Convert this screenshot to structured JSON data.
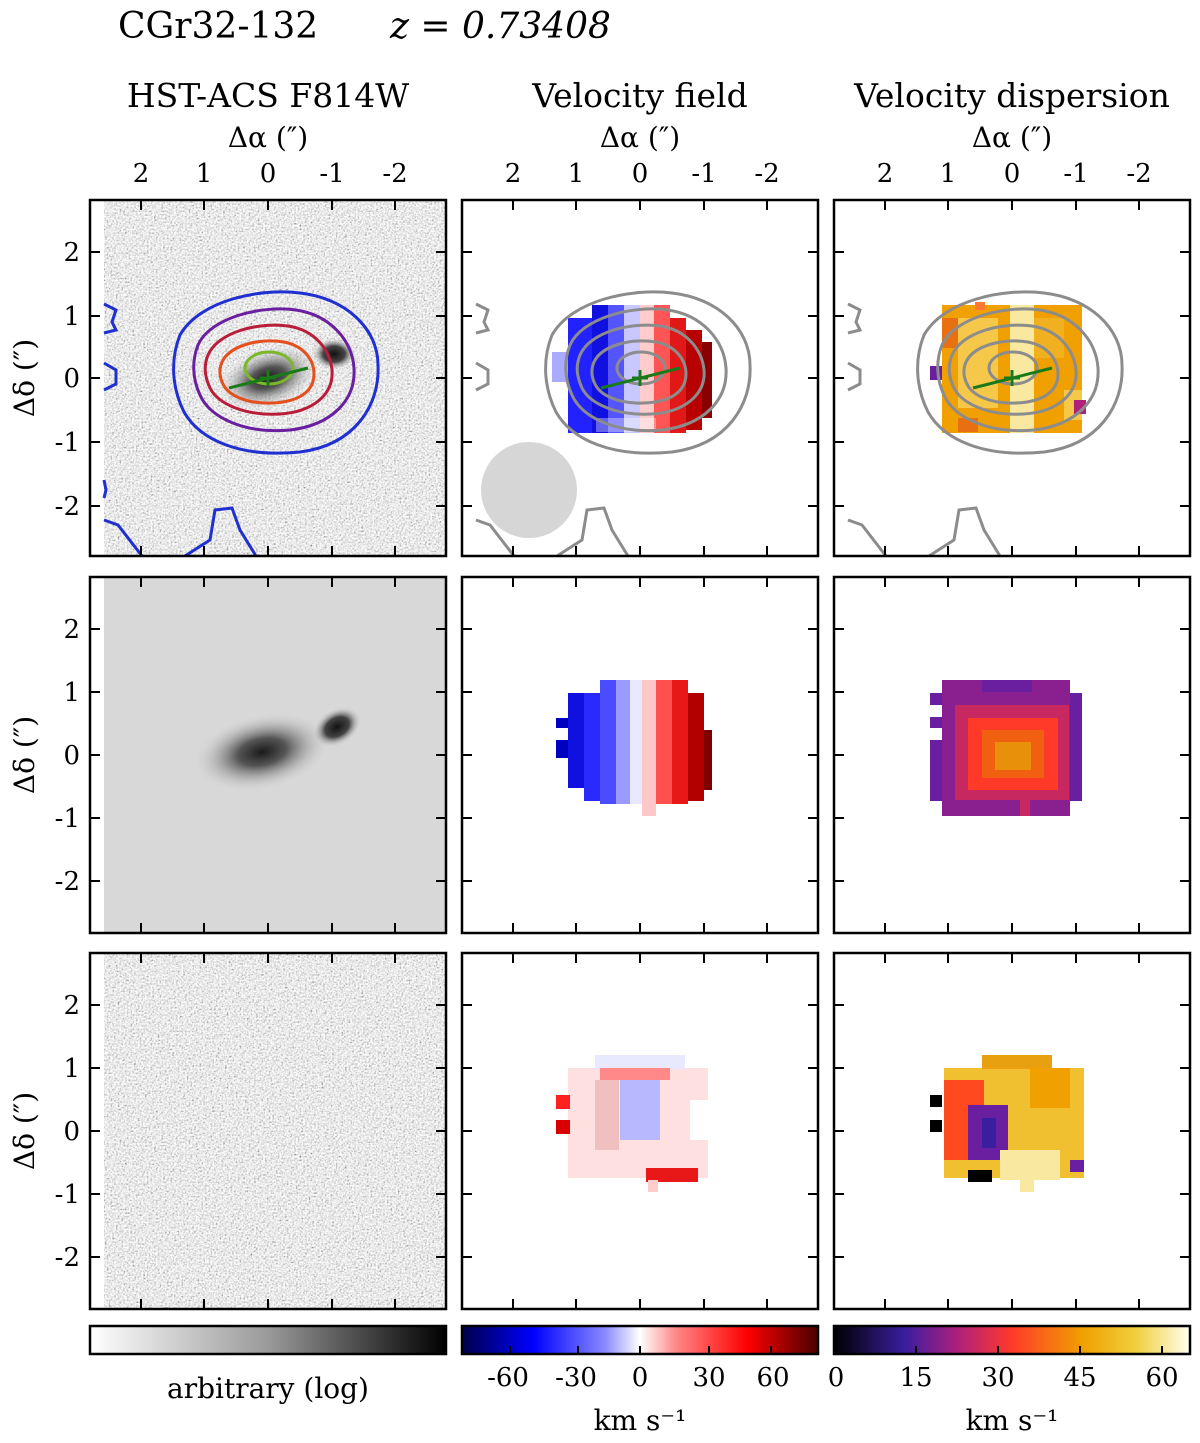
{
  "header": {
    "object": "CGr32-132",
    "redshift_label": "z = 0.73408"
  },
  "columns": [
    {
      "title": "HST-ACS F814W",
      "x_label": "Δα (″)"
    },
    {
      "title": "Velocity field",
      "x_label": "Δα (″)"
    },
    {
      "title": "Velocity dispersion",
      "x_label": "Δα (″)"
    }
  ],
  "rows": [
    {
      "y_label": "Δδ (″)"
    },
    {
      "y_label": "Δδ (″)"
    },
    {
      "y_label": "Δδ (″)"
    }
  ],
  "axes": {
    "x_ticks": [
      "2",
      "1",
      "0",
      "-1",
      "-2"
    ],
    "y_ticks": [
      "2",
      "1",
      "0",
      "-1",
      "-2"
    ],
    "x_range": [
      2.5,
      -2.8
    ],
    "y_range": [
      -2.8,
      2.8
    ]
  },
  "colorbars": [
    {
      "name": "imaging",
      "label": "arbitrary (log)",
      "ticks": []
    },
    {
      "name": "velocity",
      "label": "km s⁻¹",
      "ticks": [
        "-60",
        "-30",
        "0",
        "30",
        "60"
      ],
      "range": [
        -77,
        77
      ]
    },
    {
      "name": "dispersion",
      "label": "km s⁻¹",
      "ticks": [
        "0",
        "15",
        "30",
        "45",
        "60"
      ],
      "range": [
        0,
        65
      ]
    }
  ],
  "colors": {
    "contour_levels": [
      "#1f2fd0",
      "#6a1fa0",
      "#b81e3a",
      "#e3501e",
      "#7ab82a"
    ],
    "kinematic_axis": "#1a7a1a",
    "grey_contour": "#8c8c8c",
    "psf": "#d6d6d6"
  }
}
